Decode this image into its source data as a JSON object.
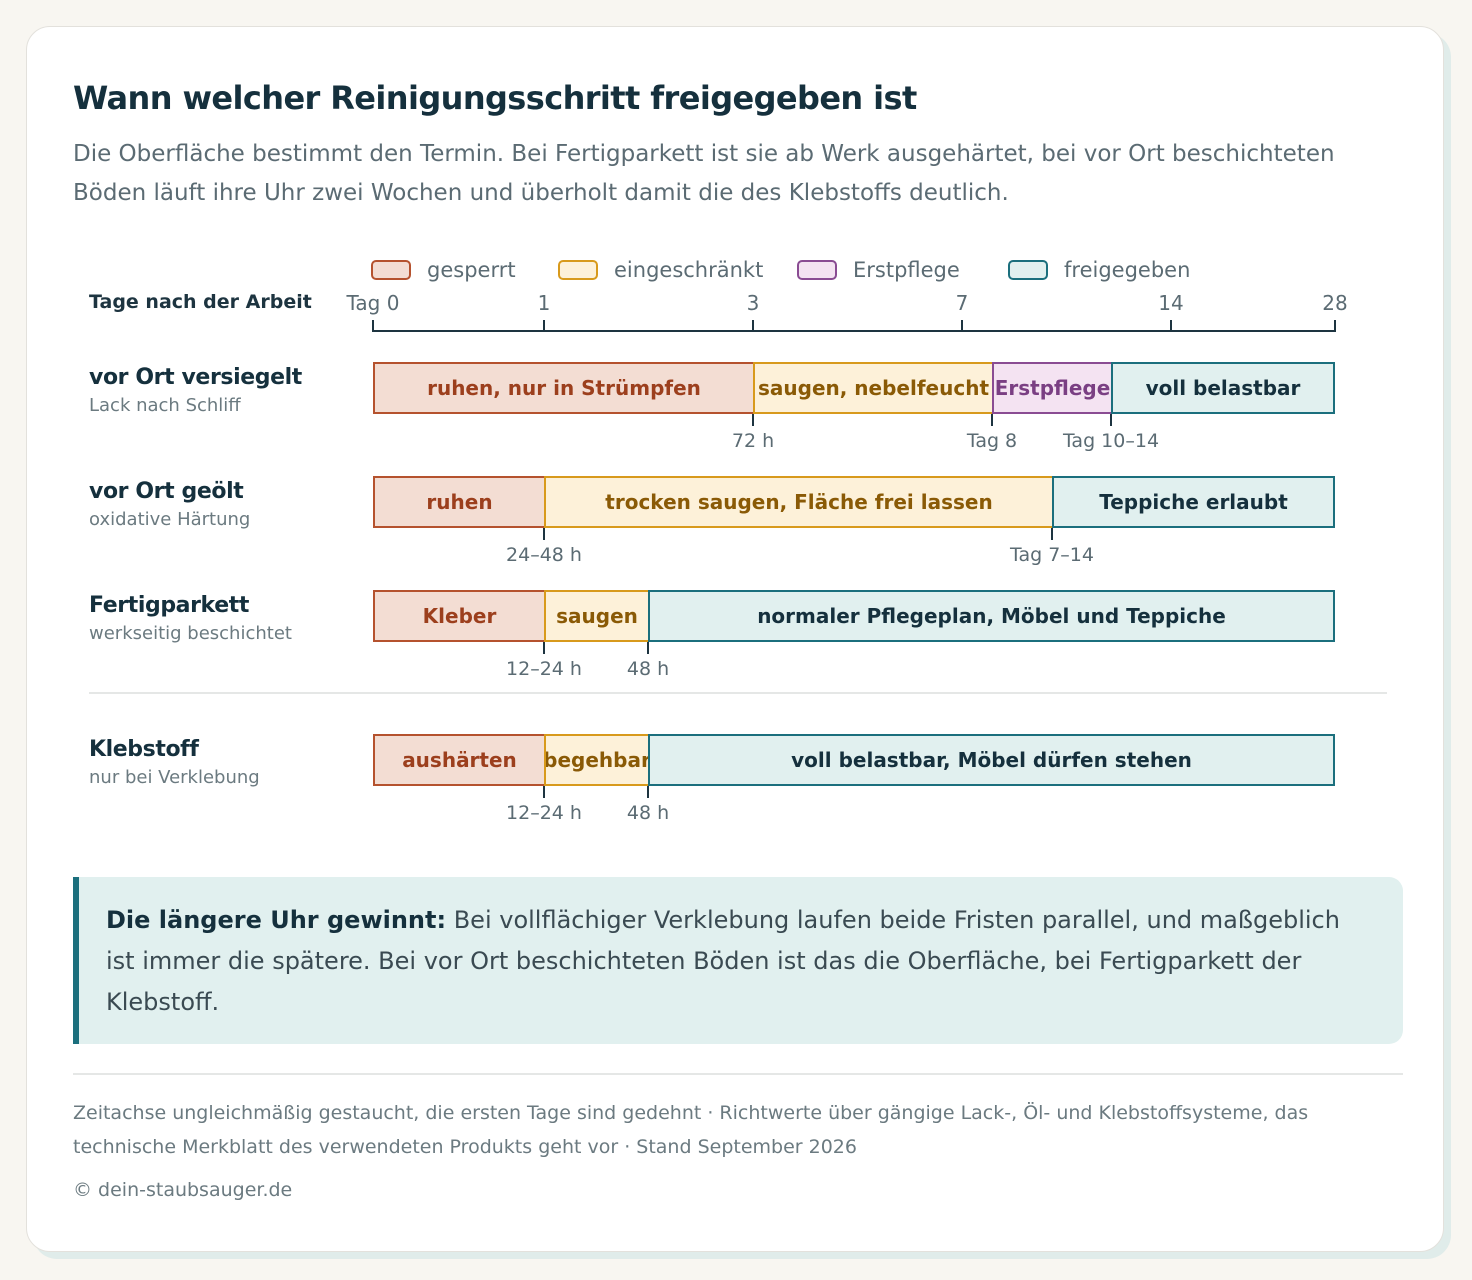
{
  "title": "Wann welcher Reinigungsschritt freigegeben ist",
  "intro": "Die Oberfläche bestimmt den Termin. Bei Fertigparkett ist sie ab Werk ausgehärtet, bei vor Ort beschichteten Böden läuft ihre Uhr zwei Wochen und überholt damit die des Klebstoffs deutlich.",
  "legend": [
    {
      "key": "locked",
      "label": "gesperrt"
    },
    {
      "key": "limited",
      "label": "eingeschränkt"
    },
    {
      "key": "firstcare",
      "label": "Erstpflege"
    },
    {
      "key": "free",
      "label": "freigegeben"
    }
  ],
  "colors": {
    "locked": {
      "fill": "#f3ddd3",
      "stroke": "#b5522e",
      "text": "#9c3f1d"
    },
    "limited": {
      "fill": "#fdf1d9",
      "stroke": "#d89a1c",
      "text": "#8a5a06"
    },
    "firstcare": {
      "fill": "#f4e3f2",
      "stroke": "#8a4c93",
      "text": "#7a3f83"
    },
    "free": {
      "fill": "#e1f0ef",
      "stroke": "#1b6f7d",
      "text": "#15303d"
    }
  },
  "axis": {
    "title": "Tage nach der Arbeit",
    "ticks": [
      {
        "day": 0,
        "label": "Tag 0"
      },
      {
        "day": 1,
        "label": "1"
      },
      {
        "day": 3,
        "label": "3"
      },
      {
        "day": 7,
        "label": "7"
      },
      {
        "day": 14,
        "label": "14"
      },
      {
        "day": 28,
        "label": "28"
      }
    ]
  },
  "rows": [
    {
      "title": "vor Ort versiegelt",
      "subtitle": "Lack nach Schliff",
      "segments": [
        {
          "from": 0,
          "to": 3,
          "label": "ruhen, nur in Strümpfen",
          "state": "locked"
        },
        {
          "from": 3,
          "to": 8,
          "label": "saugen, nebelfeucht",
          "state": "limited"
        },
        {
          "from": 8,
          "to": 12,
          "label": "Erstpflege",
          "state": "firstcare"
        },
        {
          "from": 12,
          "to": 28,
          "label": "voll belastbar",
          "state": "free"
        }
      ],
      "marks": [
        {
          "day": 3,
          "label": "72 h"
        },
        {
          "day": 8,
          "label": "Tag 8"
        },
        {
          "day": 12,
          "label": "Tag 10–14"
        }
      ]
    },
    {
      "title": "vor Ort geölt",
      "subtitle": "oxidative Härtung",
      "segments": [
        {
          "from": 0,
          "to": 1,
          "label": "ruhen",
          "state": "locked"
        },
        {
          "from": 1,
          "to": 10,
          "label": "trocken saugen, Fläche frei lassen",
          "state": "limited"
        },
        {
          "from": 10,
          "to": 28,
          "label": "Teppiche erlaubt",
          "state": "free"
        }
      ],
      "marks": [
        {
          "day": 1,
          "label": "24–48 h"
        },
        {
          "day": 10,
          "label": "Tag 7–14"
        }
      ]
    },
    {
      "title": "Fertigparkett",
      "subtitle": "werkseitig beschichtet",
      "segments": [
        {
          "from": 0,
          "to": 1,
          "label": "Kleber",
          "state": "locked"
        },
        {
          "from": 1,
          "to": 2,
          "label": "saugen",
          "state": "limited"
        },
        {
          "from": 2,
          "to": 28,
          "label": "normaler Pflegeplan, Möbel und Teppiche",
          "state": "free"
        }
      ],
      "marks": [
        {
          "day": 1,
          "label": "12–24 h"
        },
        {
          "day": 2,
          "label": "48 h"
        }
      ]
    },
    {
      "title": "Klebstoff",
      "subtitle": "nur bei Verklebung",
      "segments": [
        {
          "from": 0,
          "to": 1,
          "label": "aushärten",
          "state": "locked"
        },
        {
          "from": 1,
          "to": 2,
          "label": "begehbar",
          "state": "limited"
        },
        {
          "from": 2,
          "to": 28,
          "label": "voll belastbar, Möbel dürfen stehen",
          "state": "free"
        }
      ],
      "marks": [
        {
          "day": 1,
          "label": "12–24 h"
        },
        {
          "day": 2,
          "label": "48 h"
        }
      ]
    }
  ],
  "callout": {
    "lead": "Die längere Uhr gewinnt:",
    "text": " Bei vollflächiger Verklebung laufen beide Fristen parallel, und maßgeblich ist immer die spätere. Bei vor Ort beschichteten Böden ist das die Oberfläche, bei Fertigparkett der Klebstoff."
  },
  "footnote": "Zeitachse ungleichmäßig gestaucht, die ersten Tage sind gedehnt · Richtwerte über gängige Lack-, Öl- und Klebstoffsysteme, das technische Merkblatt des verwendeten Produkts geht vor · Stand September 2026",
  "copyright": "© dein-staubsauger.de"
}
